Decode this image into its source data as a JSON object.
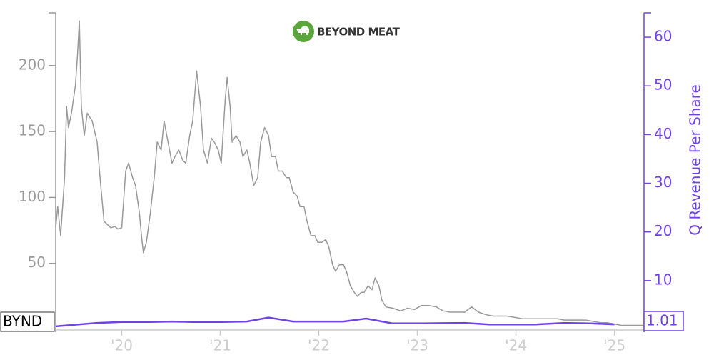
{
  "chart_data": {
    "type": "line",
    "title": "BEYOND MEAT",
    "xlim": [
      2019.33,
      2025.3
    ],
    "xticks": [
      {
        "value": 2020,
        "label": "'20"
      },
      {
        "value": 2021,
        "label": "'21"
      },
      {
        "value": 2022,
        "label": "'22"
      },
      {
        "value": 2023,
        "label": "'23"
      },
      {
        "value": 2024,
        "label": "'24"
      },
      {
        "value": 2025,
        "label": "'25"
      }
    ],
    "ylim": [
      0,
      240
    ],
    "yticks": [
      50,
      100,
      150,
      200
    ],
    "y2lim": [
      0,
      65
    ],
    "y2ticks": [
      10,
      20,
      30,
      40,
      50,
      60
    ],
    "y2label": "Q Revenue Per Share",
    "series": [
      {
        "name": "BYND",
        "color": "#999999",
        "x": [
          2019.33,
          2019.35,
          2019.38,
          2019.42,
          2019.44,
          2019.46,
          2019.49,
          2019.53,
          2019.55,
          2019.57,
          2019.59,
          2019.62,
          2019.65,
          2019.7,
          2019.75,
          2019.78,
          2019.82,
          2019.86,
          2019.89,
          2019.93,
          2019.96,
          2020.0,
          2020.04,
          2020.07,
          2020.11,
          2020.14,
          2020.18,
          2020.2,
          2020.22,
          2020.25,
          2020.29,
          2020.33,
          2020.36,
          2020.4,
          2020.43,
          2020.47,
          2020.51,
          2020.54,
          2020.58,
          2020.62,
          2020.65,
          2020.69,
          2020.72,
          2020.76,
          2020.8,
          2020.83,
          2020.87,
          2020.91,
          2020.94,
          2020.98,
          2021.01,
          2021.05,
          2021.07,
          2021.1,
          2021.12,
          2021.16,
          2021.2,
          2021.23,
          2021.27,
          2021.3,
          2021.34,
          2021.38,
          2021.41,
          2021.45,
          2021.49,
          2021.52,
          2021.56,
          2021.59,
          2021.63,
          2021.67,
          2021.7,
          2021.74,
          2021.78,
          2021.81,
          2021.85,
          2021.88,
          2021.92,
          2021.96,
          2021.99,
          2022.03,
          2022.07,
          2022.1,
          2022.14,
          2022.17,
          2022.21,
          2022.25,
          2022.28,
          2022.32,
          2022.36,
          2022.39,
          2022.43,
          2022.46,
          2022.5,
          2022.54,
          2022.57,
          2022.61,
          2022.64,
          2022.68,
          2022.75,
          2022.83,
          2022.9,
          2022.97,
          2023.04,
          2023.12,
          2023.19,
          2023.26,
          2023.33,
          2023.41,
          2023.48,
          2023.55,
          2023.62,
          2023.7,
          2023.77,
          2023.84,
          2023.91,
          2023.99,
          2024.06,
          2024.13,
          2024.2,
          2024.28,
          2024.35,
          2024.42,
          2024.49,
          2024.57,
          2024.64,
          2024.71,
          2024.78,
          2024.86,
          2024.93,
          2025.0,
          2025.07,
          2025.14,
          2025.22,
          2025.29
        ],
        "values": [
          77,
          93,
          71,
          115,
          169,
          153,
          164,
          185,
          207,
          234,
          169,
          147,
          164,
          158,
          142,
          115,
          82,
          79,
          77,
          78,
          76,
          77,
          120,
          126,
          115,
          109,
          88,
          71,
          58,
          66,
          88,
          115,
          142,
          136,
          158,
          142,
          126,
          131,
          136,
          128,
          126,
          147,
          158,
          196,
          169,
          136,
          126,
          145,
          142,
          136,
          126,
          174,
          191,
          169,
          142,
          147,
          142,
          131,
          136,
          126,
          109,
          115,
          142,
          153,
          147,
          131,
          131,
          120,
          120,
          115,
          115,
          104,
          101,
          93,
          93,
          82,
          71,
          71,
          66,
          66,
          68,
          63,
          49,
          44,
          49,
          49,
          44,
          33,
          28,
          25,
          28,
          28,
          33,
          30,
          39,
          33,
          22,
          17,
          16,
          14,
          16,
          15,
          18,
          18,
          17,
          14,
          13,
          13,
          13,
          17,
          13,
          11,
          10,
          10,
          10,
          9,
          8,
          8,
          8,
          8,
          8,
          8,
          7,
          7,
          7,
          7,
          6,
          5,
          5,
          4,
          3,
          3,
          3,
          3
        ]
      },
      {
        "color": "#6f42e8",
        "axis": "y2",
        "x": [
          2019.33,
          2019.75,
          2020.0,
          2020.29,
          2020.51,
          2020.72,
          2021.01,
          2021.27,
          2021.49,
          2021.74,
          2022.25,
          2022.48,
          2022.75,
          2023.04,
          2023.48,
          2023.73,
          2024.2,
          2024.49,
          2024.75,
          2025.0
        ],
        "values": [
          0.6,
          1.3,
          1.5,
          1.5,
          1.6,
          1.5,
          1.5,
          1.6,
          2.4,
          1.6,
          1.6,
          2.2,
          1.2,
          1.2,
          1.3,
          1.0,
          1.0,
          1.3,
          1.2,
          1.01
        ]
      }
    ]
  }
}
